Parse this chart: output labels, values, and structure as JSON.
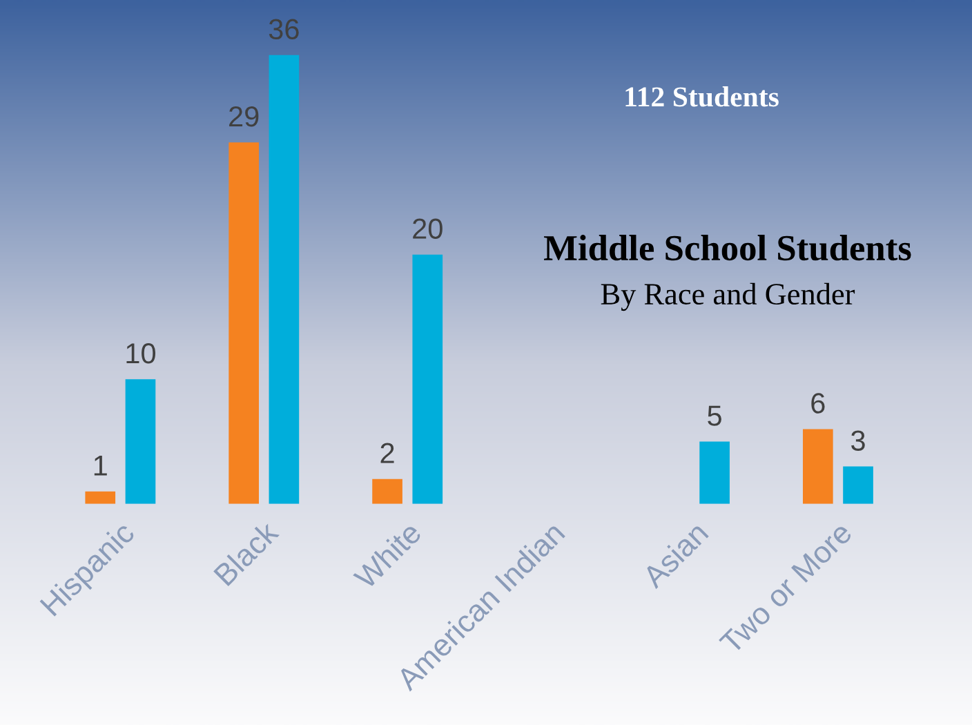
{
  "chart_data": {
    "type": "bar",
    "title": "Middle School Students",
    "subtitle": "By Race and Gender",
    "annotations": [
      "112 Students"
    ],
    "categories": [
      "Hispanic",
      "Black",
      "White",
      "American Indian",
      "Asian",
      "Two or More"
    ],
    "series": [
      {
        "color": "#f58220",
        "values": [
          1,
          29,
          2,
          null,
          null,
          6
        ]
      },
      {
        "color": "#00aedb",
        "values": [
          10,
          36,
          20,
          null,
          5,
          3
        ]
      }
    ],
    "data_labels": true,
    "grid": false,
    "legend": false
  }
}
